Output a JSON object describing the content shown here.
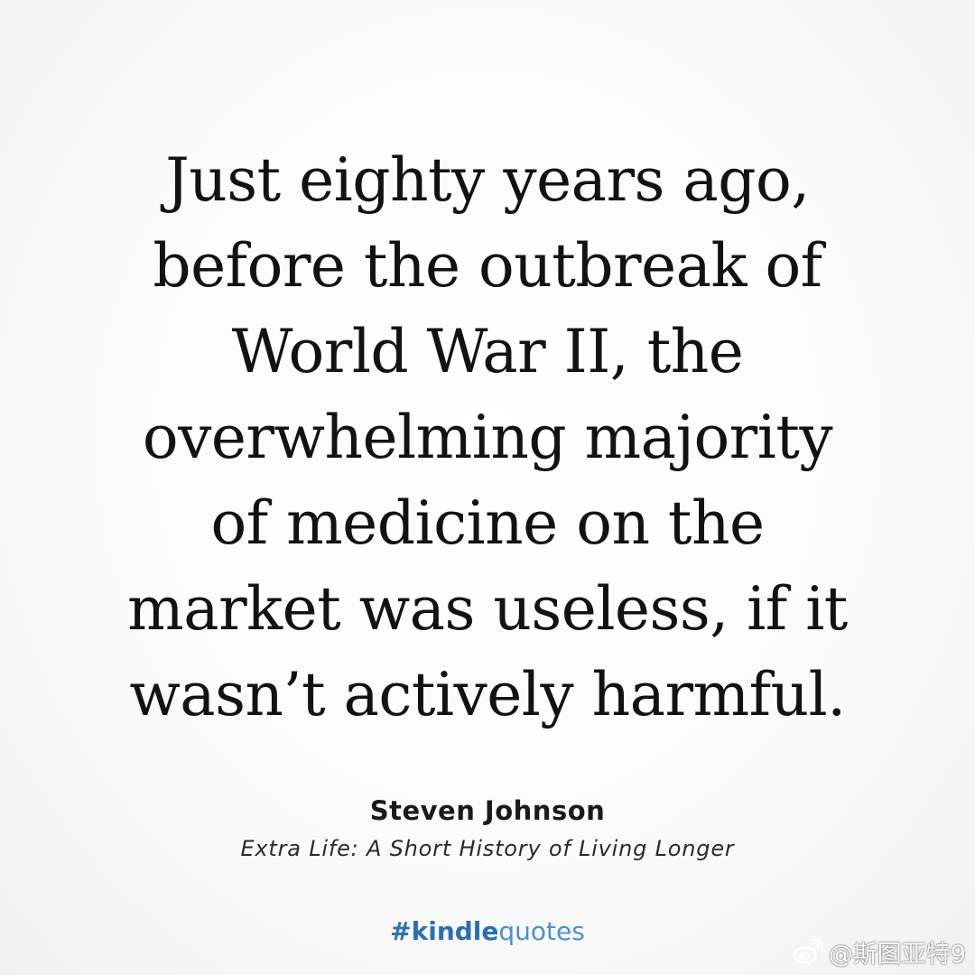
{
  "quote": {
    "lines": [
      "Just eighty years ago,",
      "before the outbreak of",
      "World War II, the",
      "overwhelming majority",
      "of medicine on the",
      "market was useless, if it",
      "wasn’t actively harmful."
    ]
  },
  "attribution": {
    "author": "Steven Johnson",
    "book_title": "Extra Life: A Short History of Living Longer"
  },
  "hashtag": {
    "prefix": "#kindle",
    "suffix": "quotes"
  },
  "watermark": {
    "text": "@斯图亚特9",
    "icon": "weibo-logo-icon"
  },
  "colors": {
    "text": "#121212",
    "hashtag_strong": "#2a6fb3",
    "hashtag_light": "#4a90d6",
    "watermark": "#ffffff"
  }
}
